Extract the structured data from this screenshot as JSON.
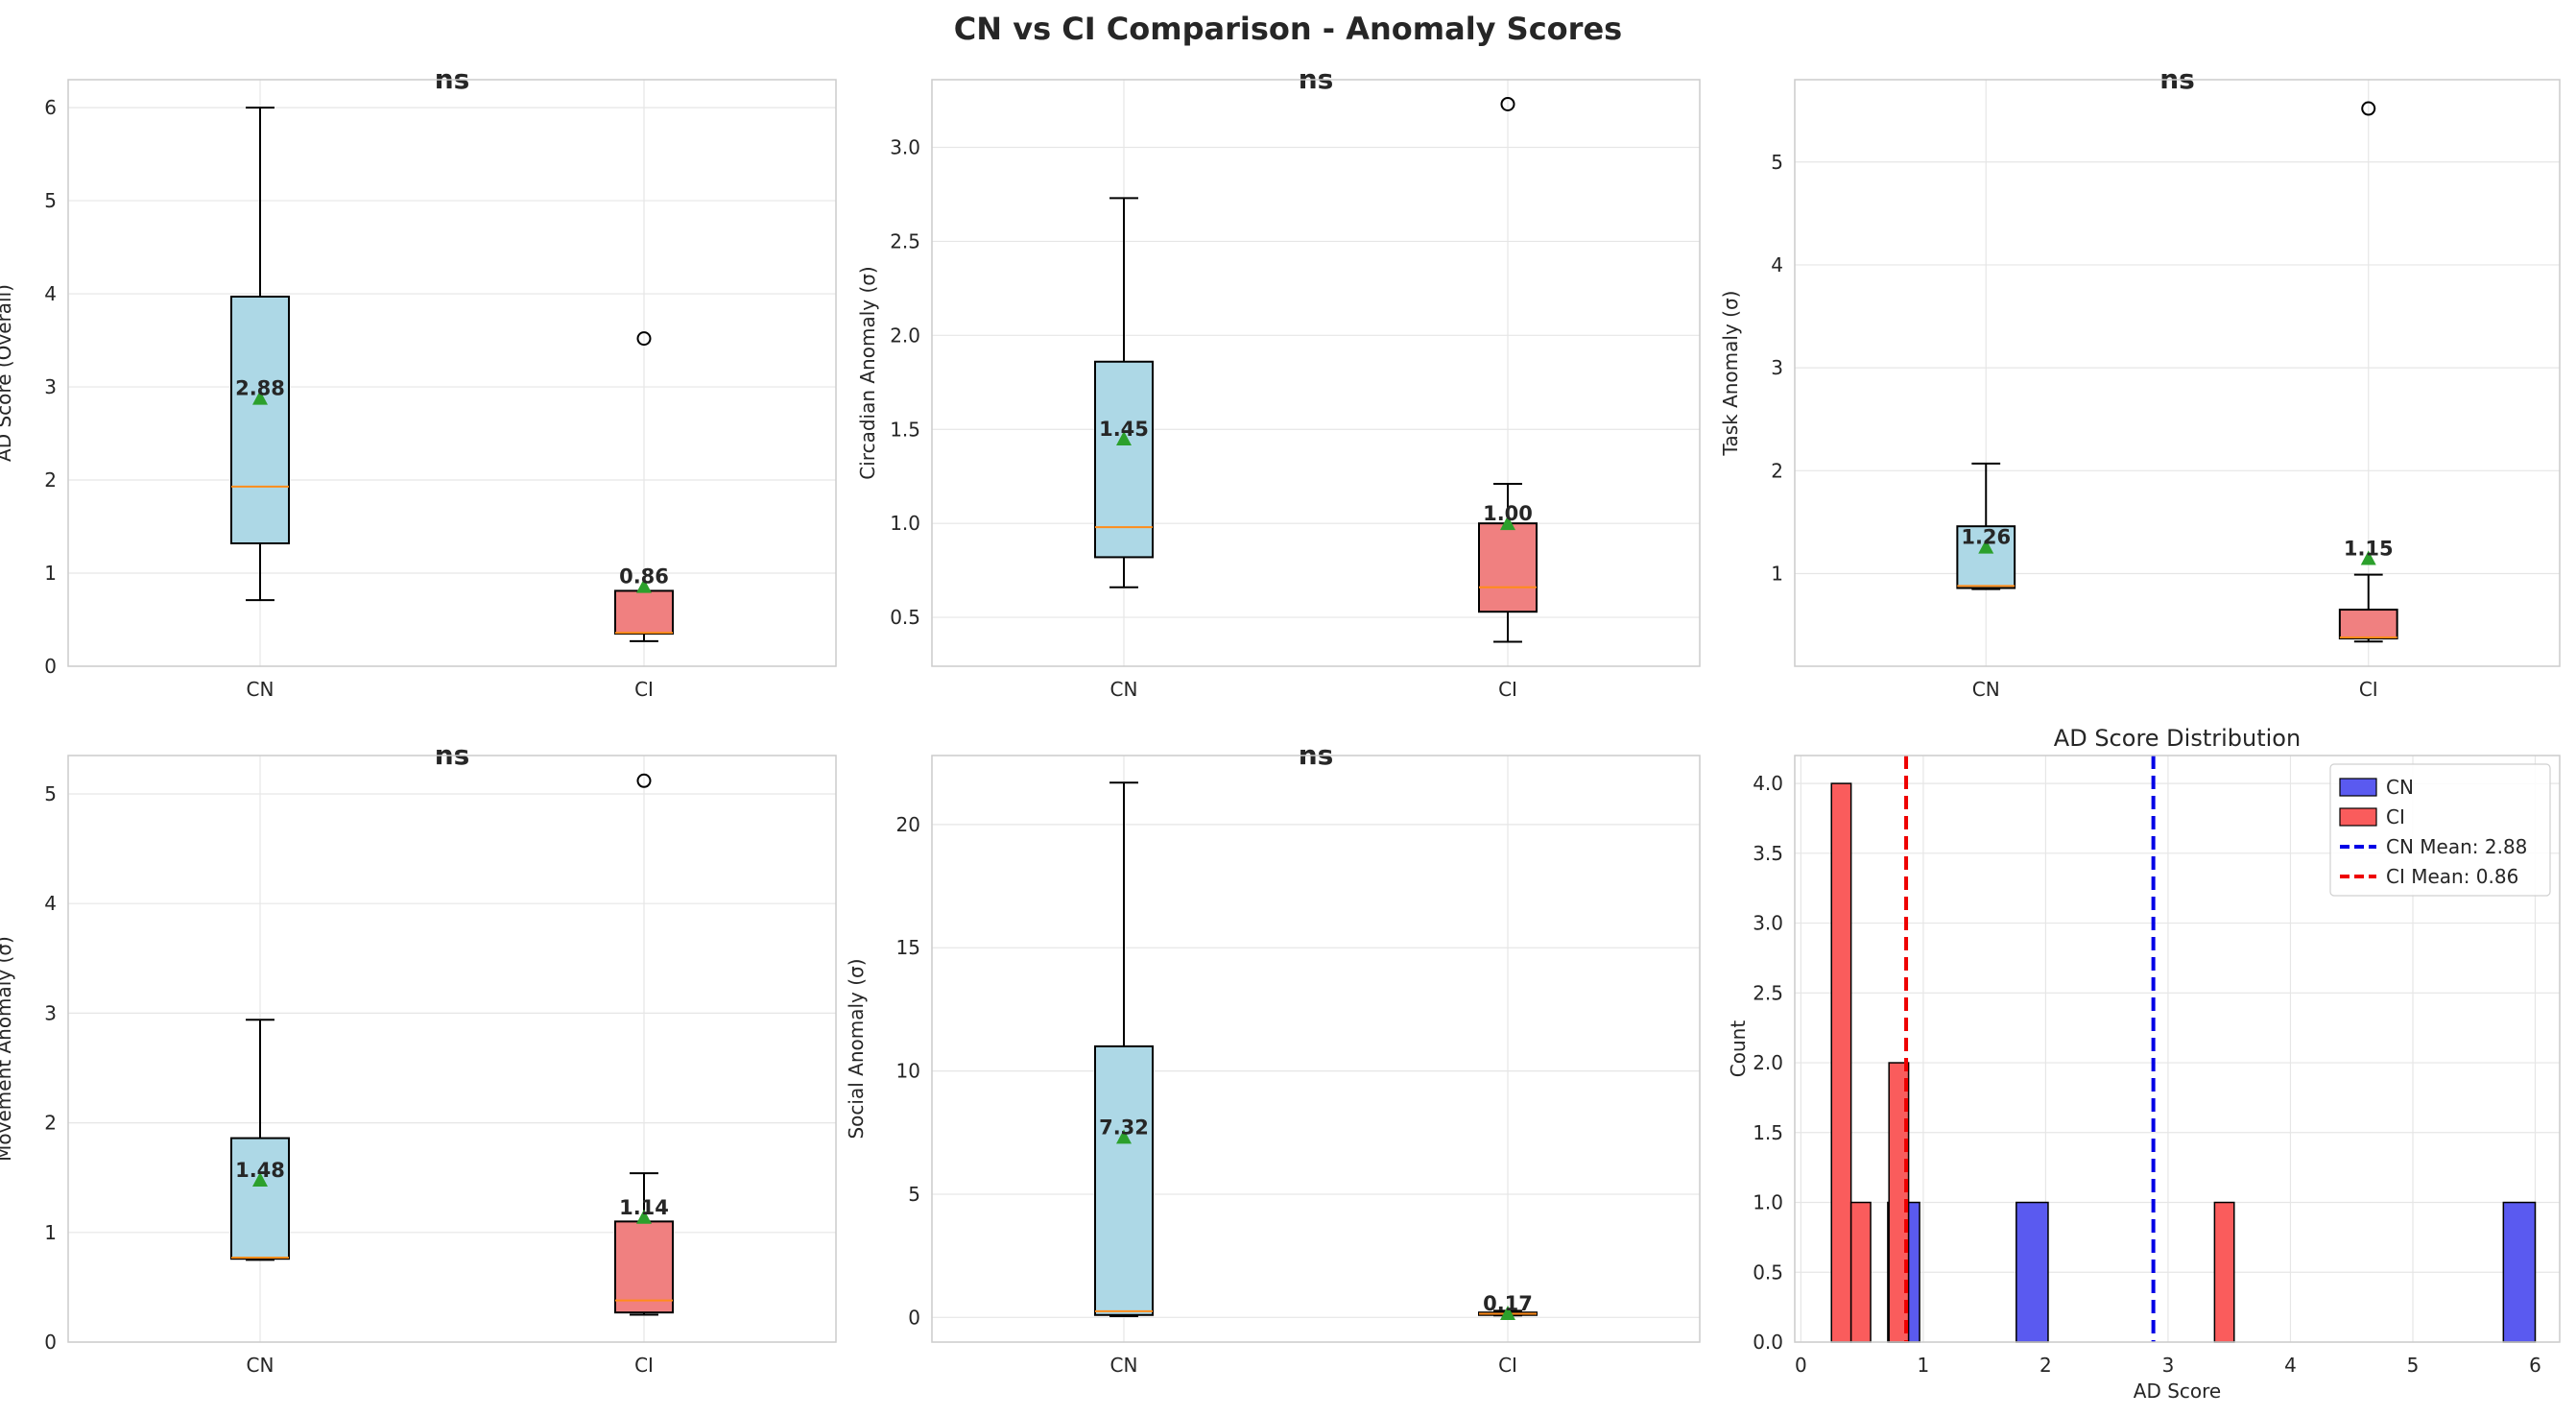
{
  "suptitle": "CN vs CI Comparison - Anomaly Scores",
  "colors": {
    "cn_box": "#add8e6",
    "ci_box": "#f08080",
    "median": "#ff8c1a",
    "mean_marker": "#2ca02c",
    "cn_hist": "#5a5af0",
    "ci_hist": "#fa5c5c",
    "cn_line": "#0000e6",
    "ci_line": "#ee0000",
    "grid": "#e6e6e6",
    "spine": "#cccccc"
  },
  "chart_data": [
    {
      "type": "box",
      "title": "ns",
      "ylabel": "AD Score (Overall)",
      "categories": [
        "CN",
        "CI"
      ],
      "ylim": [
        0,
        6.3
      ],
      "yticks": [
        0,
        1,
        2,
        3,
        4,
        5,
        6
      ],
      "boxes": [
        {
          "name": "CN",
          "whisker_low": 0.71,
          "q1": 1.32,
          "median": 1.93,
          "q3": 3.97,
          "whisker_high": 6.0,
          "mean": 2.88,
          "mean_label": "2.88",
          "outliers": []
        },
        {
          "name": "CI",
          "whisker_low": 0.27,
          "q1": 0.35,
          "median": 0.36,
          "q3": 0.81,
          "whisker_high": 0.81,
          "mean": 0.86,
          "mean_label": "0.86",
          "outliers": [
            3.52
          ]
        }
      ]
    },
    {
      "type": "box",
      "title": "ns",
      "ylabel": "Circadian Anomaly (σ)",
      "categories": [
        "CN",
        "CI"
      ],
      "ylim": [
        0.24,
        3.36
      ],
      "yticks": [
        0.5,
        1.0,
        1.5,
        2.0,
        2.5,
        3.0
      ],
      "ytick_labels": [
        "0.5",
        "1.0",
        "1.5",
        "2.0",
        "2.5",
        "3.0"
      ],
      "boxes": [
        {
          "name": "CN",
          "whisker_low": 0.66,
          "q1": 0.82,
          "median": 0.98,
          "q3": 1.86,
          "whisker_high": 2.73,
          "mean": 1.45,
          "mean_label": "1.45",
          "outliers": []
        },
        {
          "name": "CI",
          "whisker_low": 0.37,
          "q1": 0.53,
          "median": 0.66,
          "q3": 1.0,
          "whisker_high": 1.21,
          "mean": 1.0,
          "mean_label": "1.00",
          "outliers": [
            3.23
          ]
        }
      ]
    },
    {
      "type": "box",
      "title": "ns",
      "ylabel": "Task Anomaly (σ)",
      "categories": [
        "CN",
        "CI"
      ],
      "ylim": [
        0.1,
        5.8
      ],
      "yticks": [
        1,
        2,
        3,
        4,
        5
      ],
      "boxes": [
        {
          "name": "CN",
          "whisker_low": 0.85,
          "q1": 0.86,
          "median": 0.88,
          "q3": 1.46,
          "whisker_high": 2.07,
          "mean": 1.26,
          "mean_label": "1.26",
          "outliers": []
        },
        {
          "name": "CI",
          "whisker_low": 0.34,
          "q1": 0.37,
          "median": 0.38,
          "q3": 0.65,
          "whisker_high": 0.99,
          "mean": 1.15,
          "mean_label": "1.15",
          "outliers": [
            5.52
          ]
        }
      ]
    },
    {
      "type": "box",
      "title": "ns",
      "ylabel": "Movement Anomaly (σ)",
      "categories": [
        "CN",
        "CI"
      ],
      "ylim": [
        0,
        5.35
      ],
      "yticks": [
        0,
        1,
        2,
        3,
        4,
        5
      ],
      "boxes": [
        {
          "name": "CN",
          "whisker_low": 0.75,
          "q1": 0.76,
          "median": 0.77,
          "q3": 1.86,
          "whisker_high": 2.94,
          "mean": 1.48,
          "mean_label": "1.48",
          "outliers": []
        },
        {
          "name": "CI",
          "whisker_low": 0.25,
          "q1": 0.27,
          "median": 0.38,
          "q3": 1.1,
          "whisker_high": 1.54,
          "mean": 1.14,
          "mean_label": "1.14",
          "outliers": [
            5.12
          ]
        }
      ]
    },
    {
      "type": "box",
      "title": "ns",
      "ylabel": "Social Anomaly (σ)",
      "categories": [
        "CN",
        "CI"
      ],
      "ylim": [
        -1.0,
        22.8
      ],
      "yticks": [
        0,
        5,
        10,
        15,
        20
      ],
      "boxes": [
        {
          "name": "CN",
          "whisker_low": 0.05,
          "q1": 0.1,
          "median": 0.25,
          "q3": 11.0,
          "whisker_high": 21.7,
          "mean": 7.32,
          "mean_label": "7.32",
          "outliers": []
        },
        {
          "name": "CI",
          "whisker_low": 0.08,
          "q1": 0.1,
          "median": 0.15,
          "q3": 0.2,
          "whisker_high": 0.27,
          "mean": 0.17,
          "mean_label": "0.17",
          "outliers": []
        }
      ]
    },
    {
      "type": "histogram",
      "title": "AD Score Distribution",
      "xlabel": "AD Score",
      "ylabel": "Count",
      "xlim": [
        -0.05,
        6.2
      ],
      "ylim": [
        0,
        4.2
      ],
      "xticks": [
        0,
        1,
        2,
        3,
        4,
        5,
        6
      ],
      "yticks": [
        0.0,
        0.5,
        1.0,
        1.5,
        2.0,
        2.5,
        3.0,
        3.5,
        4.0
      ],
      "ytick_labels": [
        "0.0",
        "0.5",
        "1.0",
        "1.5",
        "2.0",
        "2.5",
        "3.0",
        "3.5",
        "4.0"
      ],
      "series": [
        {
          "name": "CN",
          "bins": [
            {
              "x0": 0.71,
              "x1": 0.97,
              "count": 1
            },
            {
              "x0": 1.76,
              "x1": 2.02,
              "count": 1
            },
            {
              "x0": 5.74,
              "x1": 6.0,
              "count": 1
            }
          ]
        },
        {
          "name": "CI",
          "bins": [
            {
              "x0": 0.25,
              "x1": 0.41,
              "count": 4
            },
            {
              "x0": 0.41,
              "x1": 0.57,
              "count": 1
            },
            {
              "x0": 0.72,
              "x1": 0.88,
              "count": 2
            },
            {
              "x0": 3.38,
              "x1": 3.54,
              "count": 1
            }
          ]
        }
      ],
      "vlines": [
        {
          "name": "CN Mean: 2.88",
          "x": 2.88,
          "series": "CN"
        },
        {
          "name": "CI Mean: 0.86",
          "x": 0.86,
          "series": "CI"
        }
      ],
      "legend_position": "top-right"
    }
  ]
}
